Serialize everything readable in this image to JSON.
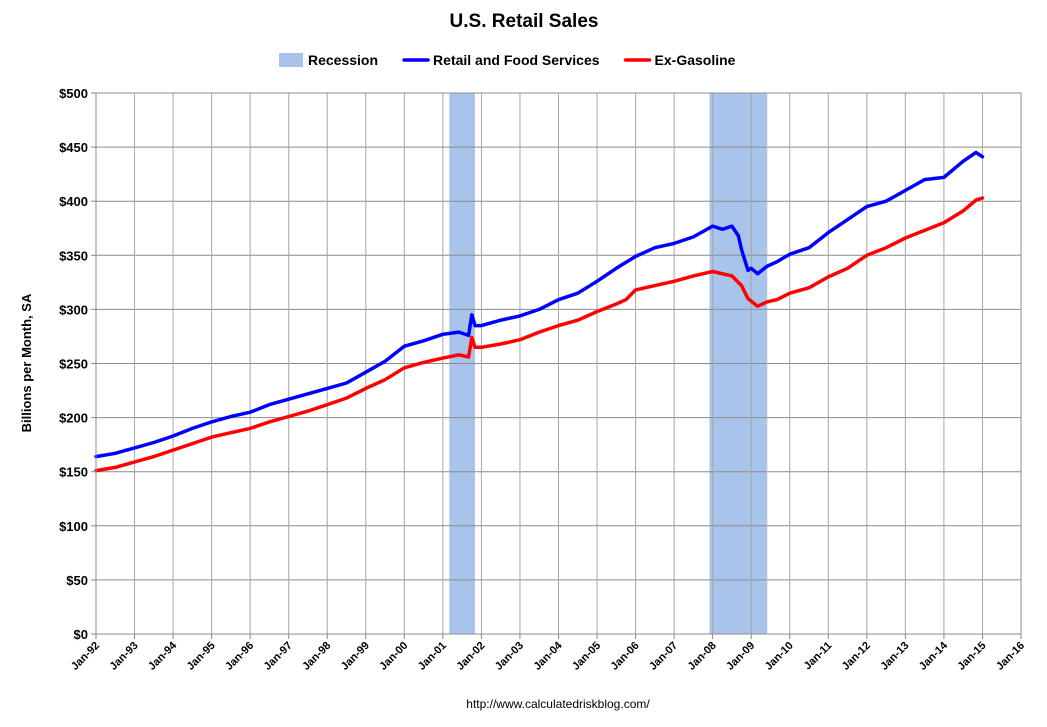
{
  "chart_data": {
    "type": "line",
    "title": "U.S. Retail Sales",
    "ylabel": "Billions per Month, SA",
    "xlabel": "",
    "source": "http://www.calculatedriskblog.com/",
    "x_range": [
      "1992-01",
      "2016-01"
    ],
    "ylim": [
      0,
      500
    ],
    "y_ticks": [
      0,
      50,
      100,
      150,
      200,
      250,
      300,
      350,
      400,
      450,
      500
    ],
    "y_tick_labels": [
      "$0",
      "$50",
      "$100",
      "$150",
      "$200",
      "$250",
      "$300",
      "$350",
      "$400",
      "$450",
      "$500"
    ],
    "x_ticks": [
      "1992-01",
      "1993-01",
      "1994-01",
      "1995-01",
      "1996-01",
      "1997-01",
      "1998-01",
      "1999-01",
      "2000-01",
      "2001-01",
      "2002-01",
      "2003-01",
      "2004-01",
      "2005-01",
      "2006-01",
      "2007-01",
      "2008-01",
      "2009-01",
      "2010-01",
      "2011-01",
      "2012-01",
      "2013-01",
      "2014-01",
      "2015-01",
      "2016-01"
    ],
    "x_tick_labels": [
      "Jan-92",
      "Jan-93",
      "Jan-94",
      "Jan-95",
      "Jan-96",
      "Jan-97",
      "Jan-98",
      "Jan-99",
      "Jan-00",
      "Jan-01",
      "Jan-02",
      "Jan-03",
      "Jan-04",
      "Jan-05",
      "Jan-06",
      "Jan-07",
      "Jan-08",
      "Jan-09",
      "Jan-10",
      "Jan-11",
      "Jan-12",
      "Jan-13",
      "Jan-14",
      "Jan-15",
      "Jan-16"
    ],
    "grid": true,
    "legend_position": "top-center",
    "legend": [
      {
        "label": "Recession",
        "kind": "area",
        "color": "#a9c4eb"
      },
      {
        "label": "Retail and Food Services",
        "kind": "line",
        "color": "#0000ff"
      },
      {
        "label": "Ex-Gasoline",
        "kind": "line",
        "color": "#ff0000"
      }
    ],
    "recessions": [
      {
        "start": "2001-03",
        "end": "2001-11"
      },
      {
        "start": "2007-12",
        "end": "2009-06"
      }
    ],
    "series": [
      {
        "name": "Retail and Food Services",
        "color": "#0000ff",
        "points": [
          [
            "1992-01",
            164
          ],
          [
            "1992-07",
            167
          ],
          [
            "1993-01",
            172
          ],
          [
            "1993-07",
            177
          ],
          [
            "1994-01",
            183
          ],
          [
            "1994-07",
            190
          ],
          [
            "1995-01",
            196
          ],
          [
            "1995-07",
            201
          ],
          [
            "1996-01",
            205
          ],
          [
            "1996-07",
            212
          ],
          [
            "1997-01",
            217
          ],
          [
            "1997-07",
            222
          ],
          [
            "1998-01",
            227
          ],
          [
            "1998-07",
            232
          ],
          [
            "1999-01",
            242
          ],
          [
            "1999-07",
            252
          ],
          [
            "2000-01",
            266
          ],
          [
            "2000-07",
            271
          ],
          [
            "2001-01",
            277
          ],
          [
            "2001-06",
            279
          ],
          [
            "2001-09",
            276
          ],
          [
            "2001-10",
            295
          ],
          [
            "2001-11",
            285
          ],
          [
            "2002-01",
            285
          ],
          [
            "2002-07",
            290
          ],
          [
            "2003-01",
            294
          ],
          [
            "2003-07",
            300
          ],
          [
            "2004-01",
            309
          ],
          [
            "2004-07",
            315
          ],
          [
            "2005-01",
            326
          ],
          [
            "2005-07",
            338
          ],
          [
            "2006-01",
            349
          ],
          [
            "2006-07",
            357
          ],
          [
            "2007-01",
            361
          ],
          [
            "2007-07",
            367
          ],
          [
            "2008-01",
            377
          ],
          [
            "2008-04",
            374
          ],
          [
            "2008-07",
            377
          ],
          [
            "2008-09",
            368
          ],
          [
            "2008-10",
            355
          ],
          [
            "2008-12",
            336
          ],
          [
            "2009-01",
            338
          ],
          [
            "2009-03",
            333
          ],
          [
            "2009-06",
            340
          ],
          [
            "2009-09",
            344
          ],
          [
            "2010-01",
            351
          ],
          [
            "2010-07",
            357
          ],
          [
            "2011-01",
            371
          ],
          [
            "2011-07",
            383
          ],
          [
            "2012-01",
            395
          ],
          [
            "2012-07",
            400
          ],
          [
            "2013-01",
            410
          ],
          [
            "2013-07",
            420
          ],
          [
            "2014-01",
            422
          ],
          [
            "2014-07",
            437
          ],
          [
            "2014-11",
            445
          ],
          [
            "2015-01",
            441
          ]
        ]
      },
      {
        "name": "Ex-Gasoline",
        "color": "#ff0000",
        "points": [
          [
            "1992-01",
            151
          ],
          [
            "1992-07",
            154
          ],
          [
            "1993-01",
            159
          ],
          [
            "1993-07",
            164
          ],
          [
            "1994-01",
            170
          ],
          [
            "1994-07",
            176
          ],
          [
            "1995-01",
            182
          ],
          [
            "1995-07",
            186
          ],
          [
            "1996-01",
            190
          ],
          [
            "1996-07",
            196
          ],
          [
            "1997-01",
            201
          ],
          [
            "1997-07",
            206
          ],
          [
            "1998-01",
            212
          ],
          [
            "1998-07",
            218
          ],
          [
            "1999-01",
            227
          ],
          [
            "1999-07",
            235
          ],
          [
            "2000-01",
            246
          ],
          [
            "2000-07",
            251
          ],
          [
            "2001-01",
            255
          ],
          [
            "2001-06",
            258
          ],
          [
            "2001-09",
            256
          ],
          [
            "2001-10",
            274
          ],
          [
            "2001-11",
            265
          ],
          [
            "2002-01",
            265
          ],
          [
            "2002-07",
            268
          ],
          [
            "2003-01",
            272
          ],
          [
            "2003-07",
            279
          ],
          [
            "2004-01",
            285
          ],
          [
            "2004-07",
            290
          ],
          [
            "2005-01",
            298
          ],
          [
            "2005-07",
            305
          ],
          [
            "2005-10",
            309
          ],
          [
            "2006-01",
            318
          ],
          [
            "2006-07",
            322
          ],
          [
            "2007-01",
            326
          ],
          [
            "2007-07",
            331
          ],
          [
            "2008-01",
            335
          ],
          [
            "2008-07",
            331
          ],
          [
            "2008-10",
            322
          ],
          [
            "2008-12",
            310
          ],
          [
            "2009-03",
            303
          ],
          [
            "2009-06",
            307
          ],
          [
            "2009-09",
            309
          ],
          [
            "2010-01",
            315
          ],
          [
            "2010-07",
            320
          ],
          [
            "2011-01",
            330
          ],
          [
            "2011-07",
            338
          ],
          [
            "2012-01",
            350
          ],
          [
            "2012-07",
            357
          ],
          [
            "2013-01",
            366
          ],
          [
            "2013-07",
            373
          ],
          [
            "2014-01",
            380
          ],
          [
            "2014-07",
            391
          ],
          [
            "2014-11",
            401
          ],
          [
            "2015-01",
            403
          ]
        ]
      }
    ]
  }
}
